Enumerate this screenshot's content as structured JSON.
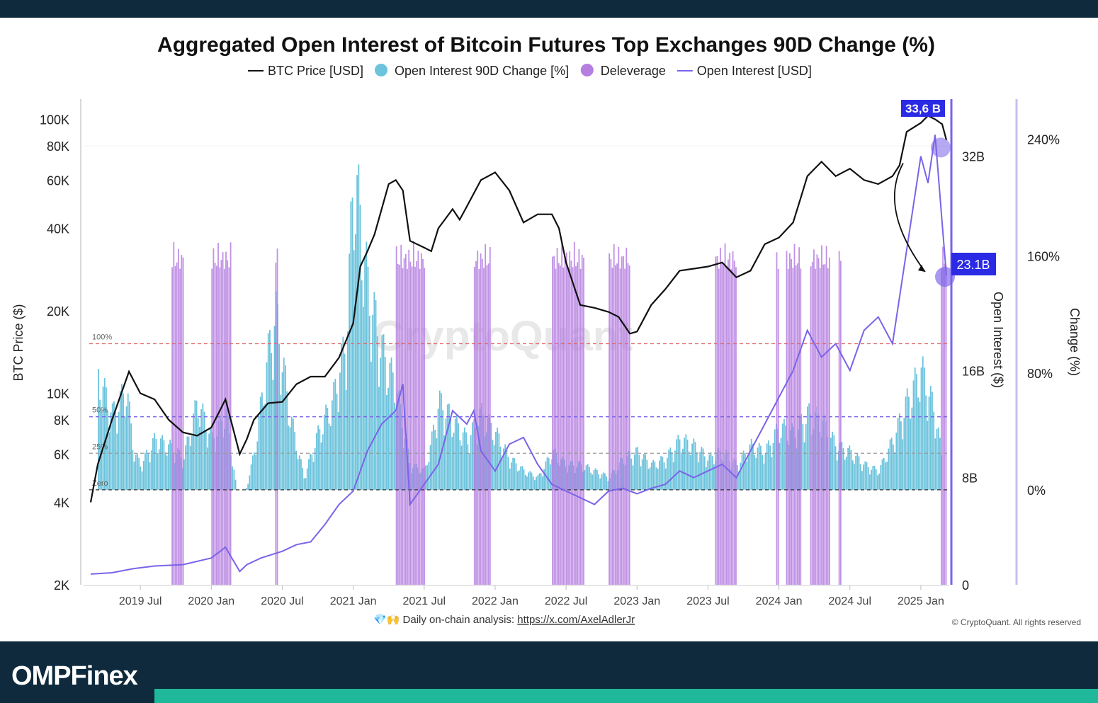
{
  "brand": {
    "name": "OMPFinex",
    "accent": "#1fb89a",
    "bar_color": "#0f2a3d"
  },
  "chart_data": {
    "type": "line",
    "title": "Aggregated Open Interest of Bitcoin Futures Top Exchanges 90D Change (%)",
    "legend": [
      {
        "name": "BTC Price [USD]",
        "color": "#111111",
        "marker": "line"
      },
      {
        "name": "Open Interest 90D Change [%]",
        "color": "#6cc3dc",
        "marker": "dot"
      },
      {
        "name": "Deleverage",
        "color": "#b57ee0",
        "marker": "dot"
      },
      {
        "name": "Open Interest [USD]",
        "color": "#7a63e8",
        "marker": "line"
      }
    ],
    "legend_position": "top-center",
    "x_ticks": [
      "2019 Jul",
      "2020 Jan",
      "2020 Jul",
      "2021 Jan",
      "2021 Jul",
      "2022 Jan",
      "2022 Jul",
      "2023 Jan",
      "2023 Jul",
      "2024 Jan",
      "2024 Jul",
      "2025 Jan"
    ],
    "x_range": [
      2019.1,
      2025.2
    ],
    "y_left": {
      "label": "BTC Price ($)",
      "scale": "log",
      "ticks": [
        "2K",
        "4K",
        "6K",
        "8K",
        "10K",
        "20K",
        "40K",
        "60K",
        "80K",
        "100K"
      ],
      "tick_values": [
        2000,
        4000,
        6000,
        8000,
        10000,
        20000,
        40000,
        60000,
        80000,
        100000
      ],
      "range": [
        2000,
        115000
      ]
    },
    "y_right_oi": {
      "label": "Open Interest ($)",
      "ticks": [
        "0",
        "8B",
        "16B",
        "24B",
        "32B"
      ],
      "tick_values": [
        0,
        8,
        16,
        24,
        32
      ],
      "range": [
        0,
        36
      ]
    },
    "y_right_change": {
      "label": "Change (%)",
      "ticks": [
        "0%",
        "80%",
        "160%",
        "240%"
      ],
      "tick_values": [
        0,
        80,
        160,
        240
      ],
      "range": [
        -65,
        265
      ]
    },
    "reference_lines": [
      {
        "label": "100%",
        "value": 100,
        "color": "#e06666"
      },
      {
        "label": "50%",
        "value": 50,
        "color": "#7a63e8"
      },
      {
        "label": "25%",
        "value": 25,
        "color": "#999999"
      },
      {
        "label": "Zero",
        "value": 0,
        "color": "#333333"
      }
    ],
    "btc_price": {
      "x": [
        2019.15,
        2019.2,
        2019.3,
        2019.42,
        2019.5,
        2019.6,
        2019.7,
        2019.8,
        2019.9,
        2020.0,
        2020.1,
        2020.2,
        2020.25,
        2020.3,
        2020.4,
        2020.5,
        2020.6,
        2020.7,
        2020.8,
        2020.9,
        2021.0,
        2021.05,
        2021.1,
        2021.15,
        2021.25,
        2021.3,
        2021.35,
        2021.4,
        2021.5,
        2021.55,
        2021.6,
        2021.7,
        2021.75,
        2021.8,
        2021.9,
        2022.0,
        2022.1,
        2022.2,
        2022.3,
        2022.4,
        2022.45,
        2022.5,
        2022.6,
        2022.7,
        2022.8,
        2022.87,
        2022.95,
        2023.0,
        2023.1,
        2023.2,
        2023.3,
        2023.4,
        2023.5,
        2023.6,
        2023.7,
        2023.8,
        2023.9,
        2024.0,
        2024.1,
        2024.15,
        2024.2,
        2024.3,
        2024.4,
        2024.5,
        2024.6,
        2024.7,
        2024.8,
        2024.85,
        2024.9,
        2025.0,
        2025.05,
        2025.1,
        2025.15,
        2025.18
      ],
      "values": [
        4000,
        5500,
        8000,
        12000,
        10000,
        9500,
        8000,
        7200,
        7000,
        7500,
        9500,
        6000,
        6800,
        8000,
        9200,
        9300,
        10800,
        11500,
        11500,
        13500,
        18000,
        29000,
        33000,
        38000,
        58000,
        60000,
        55000,
        36000,
        34000,
        33000,
        40000,
        47000,
        43000,
        48000,
        60000,
        64000,
        55000,
        42000,
        45000,
        45000,
        40000,
        30000,
        21000,
        20500,
        19800,
        19000,
        16500,
        16800,
        21000,
        24000,
        28000,
        28500,
        29000,
        30000,
        26500,
        28000,
        35000,
        37000,
        42000,
        51000,
        62000,
        70000,
        62000,
        66000,
        60000,
        58000,
        62000,
        68000,
        90000,
        97000,
        103000,
        100000,
        96000,
        84000
      ]
    },
    "open_interest_usd_billions": {
      "x": [
        2019.15,
        2019.3,
        2019.45,
        2019.6,
        2019.8,
        2020.0,
        2020.1,
        2020.2,
        2020.25,
        2020.35,
        2020.5,
        2020.6,
        2020.7,
        2020.8,
        2020.9,
        2021.0,
        2021.1,
        2021.2,
        2021.3,
        2021.35,
        2021.4,
        2021.5,
        2021.6,
        2021.7,
        2021.8,
        2021.85,
        2021.9,
        2022.0,
        2022.1,
        2022.2,
        2022.3,
        2022.4,
        2022.5,
        2022.6,
        2022.7,
        2022.8,
        2022.9,
        2023.0,
        2023.1,
        2023.2,
        2023.3,
        2023.4,
        2023.5,
        2023.6,
        2023.7,
        2023.8,
        2023.9,
        2024.0,
        2024.1,
        2024.2,
        2024.3,
        2024.4,
        2024.5,
        2024.6,
        2024.7,
        2024.8,
        2024.9,
        2025.0,
        2025.05,
        2025.1,
        2025.12,
        2025.15,
        2025.18
      ],
      "values": [
        0.8,
        0.9,
        1.2,
        1.4,
        1.5,
        2.0,
        2.8,
        1.0,
        1.5,
        2.0,
        2.5,
        3.0,
        3.2,
        4.5,
        6.0,
        7.0,
        10.0,
        12.0,
        13.0,
        15.0,
        6.0,
        7.5,
        9.0,
        13.0,
        12.0,
        13.0,
        10.0,
        8.5,
        10.5,
        11.0,
        9.0,
        7.5,
        7.0,
        6.5,
        6.0,
        7.0,
        7.2,
        6.8,
        7.2,
        7.5,
        8.5,
        8.0,
        8.5,
        9.0,
        8.0,
        10.0,
        12.0,
        14.0,
        16.0,
        19.0,
        17.0,
        18.0,
        16.0,
        19.0,
        20.0,
        18.0,
        25.0,
        32.0,
        30.0,
        33.6,
        31.0,
        27.0,
        23.1
      ]
    },
    "oi_90d_change_pct": {
      "x": [
        2019.2,
        2019.3,
        2019.4,
        2019.45,
        2019.5,
        2019.6,
        2019.7,
        2019.8,
        2019.9,
        2020.0,
        2020.1,
        2020.2,
        2020.3,
        2020.4,
        2020.45,
        2020.55,
        2020.65,
        2020.75,
        2020.85,
        2020.95,
        2021.0,
        2021.1,
        2021.2,
        2021.3,
        2021.4,
        2021.5,
        2021.55,
        2021.6,
        2021.7,
        2021.8,
        2021.9,
        2022.0,
        2022.1,
        2022.2,
        2022.3,
        2022.4,
        2022.5,
        2022.6,
        2022.7,
        2022.8,
        2022.9,
        2023.0,
        2023.1,
        2023.2,
        2023.3,
        2023.4,
        2023.5,
        2023.6,
        2023.7,
        2023.8,
        2023.9,
        2024.0,
        2024.1,
        2024.2,
        2024.3,
        2024.4,
        2024.5,
        2024.6,
        2024.7,
        2024.8,
        2024.9,
        2025.0,
        2025.1,
        2025.15
      ],
      "values": [
        90,
        60,
        80,
        30,
        20,
        40,
        35,
        25,
        70,
        40,
        60,
        -20,
        30,
        110,
        140,
        60,
        10,
        45,
        70,
        120,
        255,
        160,
        110,
        80,
        20,
        15,
        40,
        70,
        55,
        40,
        60,
        45,
        25,
        15,
        10,
        30,
        20,
        20,
        15,
        10,
        25,
        30,
        20,
        25,
        40,
        35,
        25,
        30,
        20,
        35,
        30,
        50,
        45,
        60,
        55,
        35,
        30,
        20,
        15,
        40,
        70,
        95,
        60,
        20
      ]
    },
    "deleverage_periods": [
      [
        2019.72,
        2019.8
      ],
      [
        2020.0,
        2020.14
      ],
      [
        2020.45,
        2020.47
      ],
      [
        2021.3,
        2021.5
      ],
      [
        2021.85,
        2021.97
      ],
      [
        2022.4,
        2022.62
      ],
      [
        2022.8,
        2022.95
      ],
      [
        2023.55,
        2023.7
      ],
      [
        2023.98,
        2024.0
      ],
      [
        2024.05,
        2024.15
      ],
      [
        2024.22,
        2024.36
      ],
      [
        2024.42,
        2024.44
      ],
      [
        2025.14,
        2025.18
      ]
    ],
    "annotations": [
      {
        "label": "33,6 B",
        "x": 2025.1,
        "oi": 33.6
      },
      {
        "label": "23.1B",
        "x": 2025.18,
        "oi": 23.1
      }
    ],
    "watermark": "CryptoQuant",
    "footer_left_prefix": "💎🙌 Daily on-chain analysis: ",
    "footer_link": "https://x.com/AxelAdlerJr",
    "footer_right": "© CryptoQuant. All rights reserved"
  }
}
